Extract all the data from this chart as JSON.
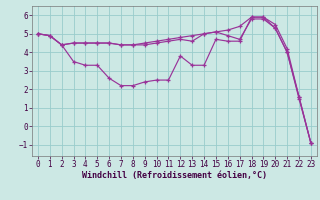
{
  "bg_color": "#cce8e4",
  "line_color": "#993399",
  "grid_color": "#99cccc",
  "xlabel": "Windchill (Refroidissement éolien,°C)",
  "xlabel_fontsize": 6.0,
  "tick_fontsize": 5.5,
  "xlim": [
    -0.5,
    23.5
  ],
  "ylim": [
    -1.6,
    6.5
  ],
  "xticks": [
    0,
    1,
    2,
    3,
    4,
    5,
    6,
    7,
    8,
    9,
    10,
    11,
    12,
    13,
    14,
    15,
    16,
    17,
    18,
    19,
    20,
    21,
    22,
    23
  ],
  "yticks": [
    -1,
    0,
    1,
    2,
    3,
    4,
    5,
    6
  ],
  "curve1_x": [
    0,
    1,
    2,
    3,
    4,
    5,
    6,
    7,
    8,
    9,
    10,
    11,
    12,
    13,
    14,
    15,
    16,
    17,
    18,
    19,
    20,
    21,
    22,
    23
  ],
  "curve1_y": [
    5.0,
    4.9,
    4.4,
    4.5,
    4.5,
    4.5,
    4.5,
    4.4,
    4.4,
    4.5,
    4.6,
    4.7,
    4.8,
    4.9,
    5.0,
    5.1,
    5.2,
    5.4,
    5.9,
    5.9,
    5.5,
    4.2,
    1.6,
    -0.9
  ],
  "curve2_x": [
    0,
    1,
    2,
    3,
    4,
    5,
    6,
    7,
    8,
    9,
    10,
    11,
    12,
    13,
    14,
    15,
    16,
    17,
    18,
    19,
    20,
    21,
    22,
    23
  ],
  "curve2_y": [
    5.0,
    4.9,
    4.4,
    4.5,
    4.5,
    4.5,
    4.5,
    4.4,
    4.4,
    4.4,
    4.5,
    4.6,
    4.7,
    4.6,
    5.0,
    5.1,
    4.9,
    4.7,
    5.8,
    5.8,
    5.3,
    4.0,
    1.5,
    -0.9
  ],
  "curve3_x": [
    0,
    1,
    2,
    3,
    4,
    5,
    6,
    7,
    8,
    9,
    10,
    11,
    12,
    13,
    14,
    15,
    16,
    17,
    18,
    19,
    20,
    21,
    22,
    23
  ],
  "curve3_y": [
    5.0,
    4.9,
    4.4,
    3.5,
    3.3,
    3.3,
    2.6,
    2.2,
    2.2,
    2.4,
    2.5,
    2.5,
    3.8,
    3.3,
    3.3,
    4.7,
    4.6,
    4.6,
    5.9,
    5.9,
    5.3,
    4.0,
    1.6,
    -0.9
  ]
}
